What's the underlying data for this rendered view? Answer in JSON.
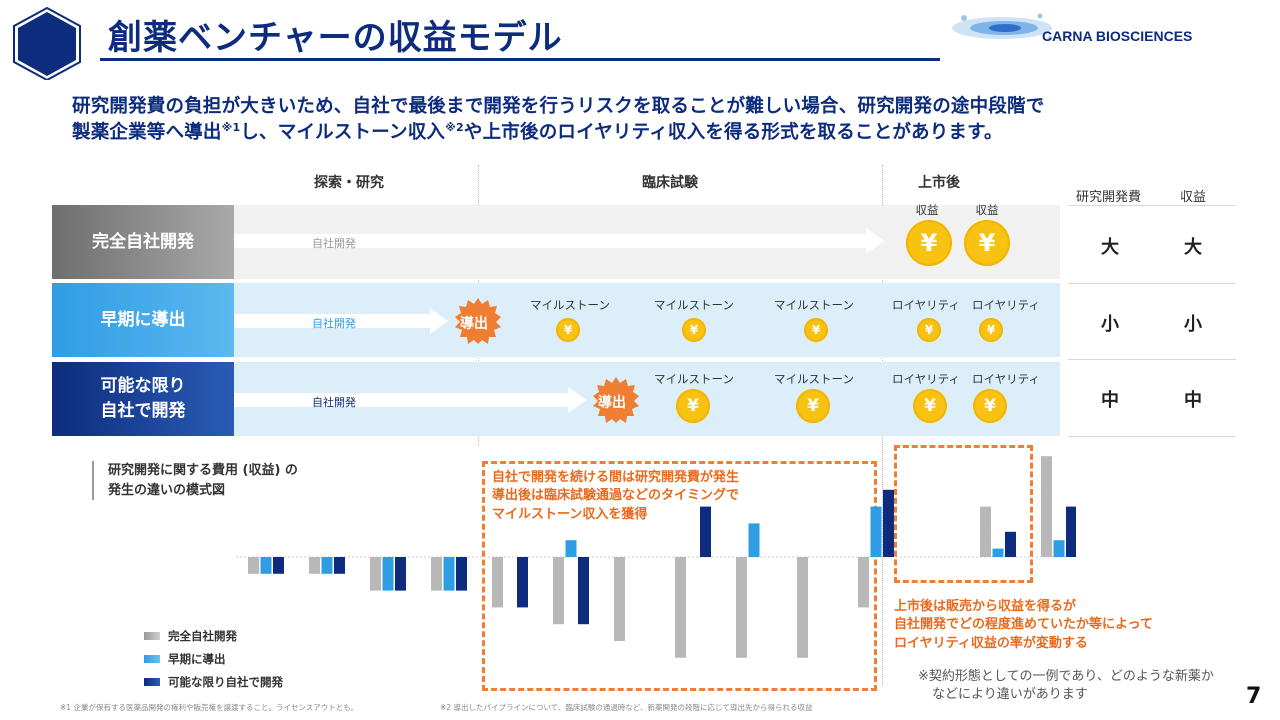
{
  "header": {
    "title": "創薬ベンチャーの収益モデル",
    "logo_text": "CARNA BIOSCIENCES"
  },
  "lead": {
    "line1": "研究開発費の負担が大きいため、自社で最後まで開発を行うリスクを取ることが難しい場合、研究開発の途中段階で",
    "line2_a": "製薬企業等へ導出",
    "line2_sup1": "※1",
    "line2_b": "し、マイルストーン収入",
    "line2_sup2": "※2",
    "line2_c": "や上市後のロイヤリティ収入を得る形式を取ることがあります。"
  },
  "phases": [
    "探索・研究",
    "臨床試験",
    "上市後"
  ],
  "table": {
    "headers": [
      "研究開発費",
      "収益"
    ],
    "rows": [
      {
        "cost": "大",
        "revenue": "大"
      },
      {
        "cost": "小",
        "revenue": "小"
      },
      {
        "cost": "中",
        "revenue": "中"
      }
    ]
  },
  "rows": [
    {
      "label": "完全自社開発",
      "arrow_label": "自社開発",
      "coin_captions": [
        "収益",
        "収益"
      ]
    },
    {
      "label": "早期に導出",
      "arrow_label": "自社開発",
      "badge": "導出",
      "coin_captions": [
        "マイルストーン",
        "マイルストーン",
        "マイルストーン",
        "ロイヤリティ",
        "ロイヤリティ"
      ]
    },
    {
      "label_line1": "可能な限り",
      "label_line2": "自社で開発",
      "arrow_label": "自社開発",
      "badge": "導出",
      "coin_captions": [
        "マイルストーン",
        "マイルストーン",
        "ロイヤリティ",
        "ロイヤリティ"
      ]
    }
  ],
  "coin_symbol": "¥",
  "chart": {
    "title_line1": "研究開発に関する費用 (収益) の",
    "title_line2": "発生の違いの模式図",
    "note_clinical": [
      "自社で開発を続ける間は研究開発費が発生",
      "導出後は臨床試験通過などのタイミングで",
      "マイルストーン収入を獲得"
    ],
    "note_market": [
      "上市後は販売から収益を得るが",
      "自社開発でどの程度進めていたか等によって",
      "ロイヤリティ収益の率が変動する"
    ],
    "legend": [
      "完全自社開発",
      "早期に導出",
      "可能な限り自社で開発"
    ]
  },
  "chart_data": {
    "type": "bar",
    "title": "研究開発に関する費用 (収益) の発生の違いの模式図",
    "categories": [
      "",
      "",
      "",
      "",
      "",
      "",
      "",
      "",
      "",
      "",
      "",
      "",
      "",
      ""
    ],
    "series": [
      {
        "name": "完全自社開発",
        "values": [
          -2,
          -2,
          -4,
          -4,
          -6,
          -8,
          -10,
          -12,
          -12,
          -12,
          -6,
          null,
          6,
          12
        ]
      },
      {
        "name": "早期に導出",
        "values": [
          -2,
          -2,
          -4,
          -4,
          null,
          2,
          null,
          null,
          4,
          null,
          6,
          null,
          1,
          2
        ]
      },
      {
        "name": "可能な限り自社で開発",
        "values": [
          -2,
          -2,
          -4,
          -4,
          -6,
          -8,
          null,
          6,
          null,
          null,
          8,
          null,
          3,
          6
        ]
      }
    ],
    "ylim": [
      -12,
      12
    ],
    "colors": [
      "#b8b8b8",
      "#2f9de4",
      "#0d2c7e"
    ]
  },
  "remark": {
    "line1": "※契約形態としての一例であり、どのような新薬か",
    "line2": "などにより違いがあります"
  },
  "footnotes": {
    "note1": "※1 企業が保有する医薬品開発の権利や販売権を譲渡すること。ライセンスアウトとも。",
    "note2": "※2 導出したパイプラインについて、臨床試験の通過時など、新薬開発の段階に応じて導出先から得られる収益"
  },
  "page_number": "7",
  "colors": {
    "navy": "#0d2c7e",
    "blue": "#2f9de4",
    "orange": "#ef7d32",
    "gold": "#f7c212",
    "gray": "#b8b8b8"
  }
}
